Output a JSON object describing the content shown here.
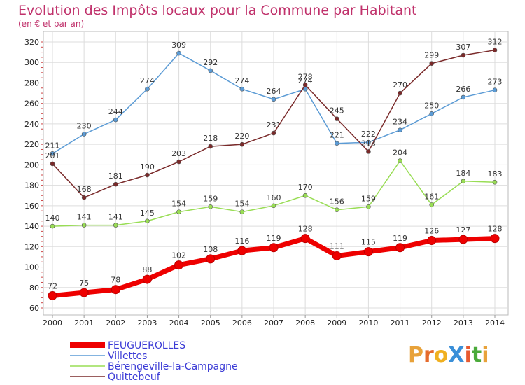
{
  "chart_data": {
    "type": "line",
    "title": "Evolution des Impôts locaux pour la Commune par Habitant",
    "subtitle": "(en € et par an)",
    "x": [
      "2000",
      "2001",
      "2002",
      "2003",
      "2004",
      "2005",
      "2006",
      "2007",
      "2008",
      "2009",
      "2010",
      "2011",
      "2012",
      "2013",
      "2014"
    ],
    "yticks": [
      60,
      80,
      100,
      120,
      140,
      160,
      180,
      200,
      220,
      240,
      260,
      280,
      300,
      320
    ],
    "ylim": [
      60,
      320
    ],
    "grid": true,
    "series": [
      {
        "name": "FEUGUEROLLES",
        "color": "#ee0000",
        "emphasis": true,
        "values": [
          72,
          75,
          78,
          88,
          102,
          108,
          116,
          119,
          128,
          111,
          115,
          119,
          126,
          127,
          128
        ]
      },
      {
        "name": "Villettes",
        "color": "#5b9bd5",
        "emphasis": false,
        "values": [
          211,
          230,
          244,
          274,
          309,
          292,
          274,
          264,
          274,
          221,
          222,
          234,
          250,
          266,
          273
        ]
      },
      {
        "name": "Bérengeville-la-Campagne",
        "color": "#99dd55",
        "emphasis": false,
        "values": [
          140,
          141,
          141,
          145,
          154,
          159,
          154,
          160,
          170,
          156,
          159,
          204,
          161,
          184,
          183
        ]
      },
      {
        "name": "Quittebeuf",
        "color": "#7a2a2a",
        "emphasis": false,
        "values": [
          201,
          168,
          181,
          190,
          203,
          218,
          220,
          231,
          278,
          245,
          213,
          270,
          299,
          307,
          312
        ]
      }
    ]
  },
  "logo": {
    "text": "ProXiti"
  }
}
